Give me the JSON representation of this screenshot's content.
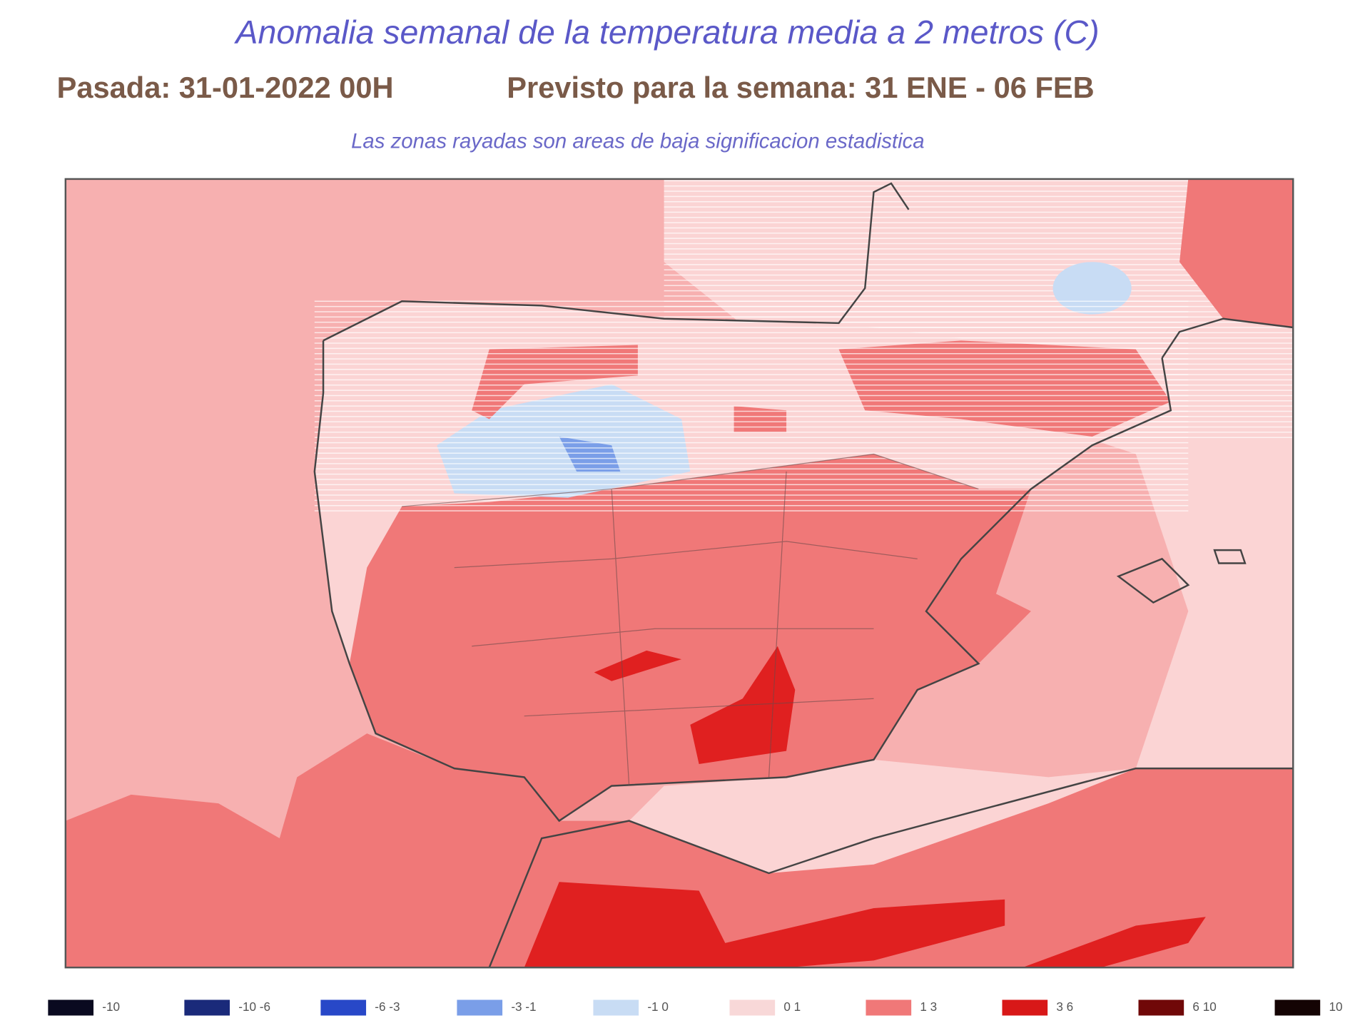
{
  "header": {
    "title": "Anomalia semanal de la temperatura media a 2 metros (C)",
    "run": "Pasada: 31-01-2022 00H",
    "forecast": "Previsto para la semana:  31 ENE - 06 FEB",
    "note": "Las zonas rayadas son areas de baja significacion estadistica"
  },
  "legend": [
    {
      "label": "-10",
      "color": "#0a0a20"
    },
    {
      "label": "-10 -6",
      "color": "#1a2a7a"
    },
    {
      "label": "-6 -3",
      "color": "#2848c8"
    },
    {
      "label": "-3 -1",
      "color": "#7a9ee8"
    },
    {
      "label": "-1 0",
      "color": "#c8dcf4"
    },
    {
      "label": "0 1",
      "color": "#f8d8d8"
    },
    {
      "label": "1 3",
      "color": "#f07878"
    },
    {
      "label": "3 6",
      "color": "#d81818"
    },
    {
      "label": "6 10",
      "color": "#700808"
    },
    {
      "label": "10",
      "color": "#140404"
    }
  ]
}
